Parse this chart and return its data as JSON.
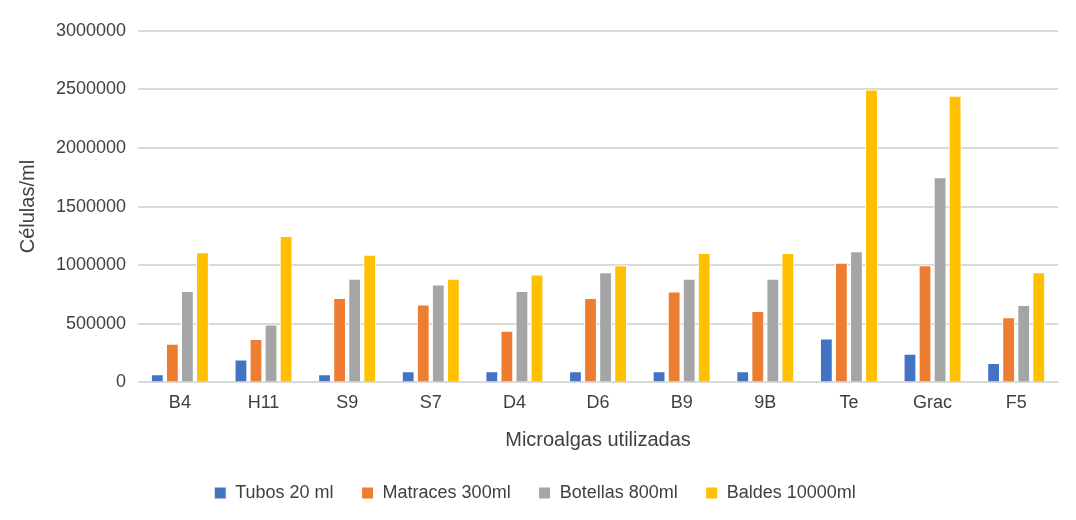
{
  "chart_data": {
    "type": "bar",
    "xlabel": "Microalgas utilizadas",
    "ylabel": "Células/ml",
    "categories": [
      "B4",
      "H11",
      "S9",
      "S7",
      "D4",
      "D6",
      "B9",
      "9B",
      "Te",
      "Grac",
      "F5"
    ],
    "series": [
      {
        "name": "Tubos 20 ml",
        "color": "#4472c4",
        "values": [
          70000,
          195000,
          70000,
          95000,
          95000,
          95000,
          95000,
          95000,
          375000,
          245000,
          165000
        ]
      },
      {
        "name": "Matraces 300ml",
        "color": "#ed7d31",
        "values": [
          330000,
          370000,
          720000,
          665000,
          440000,
          720000,
          775000,
          610000,
          1020000,
          1000000,
          555000
        ]
      },
      {
        "name": "Botellas 800ml",
        "color": "#a5a5a5",
        "values": [
          780000,
          495000,
          885000,
          835000,
          780000,
          940000,
          885000,
          885000,
          1120000,
          1750000,
          660000
        ]
      },
      {
        "name": "Baldes 10000ml",
        "color": "#ffc000",
        "values": [
          1110000,
          1250000,
          1090000,
          885000,
          920000,
          1000000,
          1105000,
          1105000,
          2500000,
          2445000,
          940000
        ]
      }
    ],
    "ylim": [
      0,
      3000000
    ],
    "yticks": [
      0,
      500000,
      1000000,
      1500000,
      2000000,
      2500000,
      3000000
    ],
    "grid": "y",
    "legend": "bottom"
  }
}
